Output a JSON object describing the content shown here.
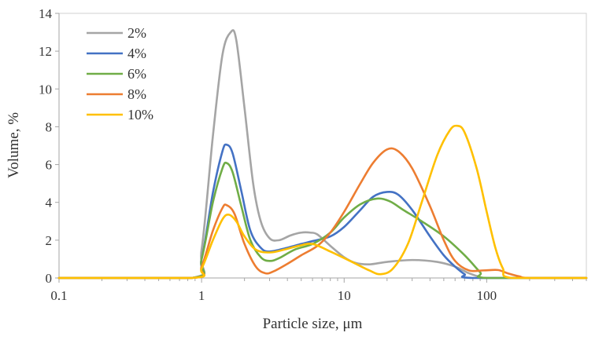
{
  "chart_data": {
    "type": "line",
    "title": "",
    "xlabel": "Particle size, μm",
    "ylabel": "Volume, %",
    "xscale": "log",
    "xlim": [
      0.1,
      500
    ],
    "ylim": [
      0,
      14
    ],
    "xticks": [
      0.1,
      1,
      10,
      100
    ],
    "xtick_labels": [
      "0.1",
      "1",
      "10",
      "100"
    ],
    "yticks": [
      0,
      2,
      4,
      6,
      8,
      10,
      12,
      14
    ],
    "ytick_labels": [
      "0",
      "2",
      "4",
      "6",
      "8",
      "10",
      "12",
      "14"
    ],
    "grid": false,
    "legend_position": "top-left",
    "series": [
      {
        "name": "2%",
        "color": "#A5A5A5",
        "points": [
          [
            0.1,
            0
          ],
          [
            0.85,
            0
          ],
          [
            1.0,
            1.5
          ],
          [
            1.2,
            7.5
          ],
          [
            1.4,
            11.8
          ],
          [
            1.6,
            13.0
          ],
          [
            1.75,
            12.6
          ],
          [
            2.0,
            9.0
          ],
          [
            2.3,
            5.0
          ],
          [
            2.6,
            3.0
          ],
          [
            3.0,
            2.1
          ],
          [
            3.5,
            2.0
          ],
          [
            4.2,
            2.25
          ],
          [
            5.0,
            2.4
          ],
          [
            5.8,
            2.4
          ],
          [
            6.5,
            2.3
          ],
          [
            8,
            1.7
          ],
          [
            10,
            1.1
          ],
          [
            12,
            0.8
          ],
          [
            15,
            0.72
          ],
          [
            20,
            0.85
          ],
          [
            30,
            0.95
          ],
          [
            45,
            0.85
          ],
          [
            60,
            0.6
          ],
          [
            75,
            0.25
          ],
          [
            90,
            0.05
          ],
          [
            100,
            0
          ],
          [
            500,
            0
          ]
        ]
      },
      {
        "name": "4%",
        "color": "#4472C4",
        "points": [
          [
            0.1,
            0
          ],
          [
            0.85,
            0
          ],
          [
            1.0,
            1.0
          ],
          [
            1.2,
            4.5
          ],
          [
            1.4,
            6.7
          ],
          [
            1.5,
            7.05
          ],
          [
            1.65,
            6.6
          ],
          [
            1.9,
            4.6
          ],
          [
            2.2,
            2.5
          ],
          [
            2.6,
            1.6
          ],
          [
            3.0,
            1.4
          ],
          [
            4.0,
            1.6
          ],
          [
            5.0,
            1.8
          ],
          [
            6.0,
            1.95
          ],
          [
            8,
            2.2
          ],
          [
            10,
            2.7
          ],
          [
            13,
            3.6
          ],
          [
            16,
            4.3
          ],
          [
            20,
            4.55
          ],
          [
            24,
            4.4
          ],
          [
            30,
            3.6
          ],
          [
            40,
            2.2
          ],
          [
            50,
            1.2
          ],
          [
            60,
            0.6
          ],
          [
            70,
            0.2
          ],
          [
            80,
            0
          ],
          [
            500,
            0
          ]
        ]
      },
      {
        "name": "6%",
        "color": "#70AD47",
        "points": [
          [
            0.1,
            0
          ],
          [
            0.85,
            0
          ],
          [
            1.0,
            1.0
          ],
          [
            1.2,
            4.0
          ],
          [
            1.4,
            5.8
          ],
          [
            1.5,
            6.08
          ],
          [
            1.65,
            5.6
          ],
          [
            1.9,
            3.8
          ],
          [
            2.2,
            2.0
          ],
          [
            2.6,
            1.1
          ],
          [
            3.0,
            0.9
          ],
          [
            3.5,
            1.05
          ],
          [
            4.5,
            1.5
          ],
          [
            6,
            1.8
          ],
          [
            8,
            2.4
          ],
          [
            10,
            3.2
          ],
          [
            13,
            3.9
          ],
          [
            17,
            4.2
          ],
          [
            21,
            4.05
          ],
          [
            26,
            3.6
          ],
          [
            35,
            3.0
          ],
          [
            50,
            2.2
          ],
          [
            70,
            1.2
          ],
          [
            90,
            0.3
          ],
          [
            100,
            0
          ],
          [
            500,
            0
          ]
        ]
      },
      {
        "name": "8%",
        "color": "#ED7D31",
        "points": [
          [
            0.1,
            0
          ],
          [
            0.85,
            0
          ],
          [
            1.0,
            0.6
          ],
          [
            1.2,
            2.5
          ],
          [
            1.4,
            3.7
          ],
          [
            1.5,
            3.85
          ],
          [
            1.7,
            3.4
          ],
          [
            2.0,
            1.8
          ],
          [
            2.4,
            0.6
          ],
          [
            2.8,
            0.25
          ],
          [
            3.2,
            0.35
          ],
          [
            4.0,
            0.75
          ],
          [
            5.0,
            1.2
          ],
          [
            6.5,
            1.7
          ],
          [
            8,
            2.4
          ],
          [
            10,
            3.5
          ],
          [
            13,
            5.0
          ],
          [
            16,
            6.1
          ],
          [
            20,
            6.8
          ],
          [
            24,
            6.7
          ],
          [
            30,
            5.8
          ],
          [
            40,
            3.8
          ],
          [
            50,
            2.0
          ],
          [
            60,
            0.9
          ],
          [
            75,
            0.4
          ],
          [
            95,
            0.4
          ],
          [
            120,
            0.42
          ],
          [
            140,
            0.25
          ],
          [
            170,
            0.08
          ],
          [
            200,
            0
          ],
          [
            500,
            0
          ]
        ]
      },
      {
        "name": "10%",
        "color": "#FFC000",
        "points": [
          [
            0.1,
            0
          ],
          [
            0.85,
            0
          ],
          [
            1.0,
            0.5
          ],
          [
            1.2,
            2.0
          ],
          [
            1.4,
            3.1
          ],
          [
            1.55,
            3.35
          ],
          [
            1.75,
            3.0
          ],
          [
            2.0,
            2.2
          ],
          [
            2.4,
            1.5
          ],
          [
            3.0,
            1.35
          ],
          [
            3.8,
            1.5
          ],
          [
            4.8,
            1.7
          ],
          [
            6,
            1.8
          ],
          [
            8,
            1.4
          ],
          [
            11,
            0.9
          ],
          [
            15,
            0.4
          ],
          [
            18,
            0.2
          ],
          [
            22,
            0.5
          ],
          [
            28,
            1.8
          ],
          [
            35,
            4.0
          ],
          [
            45,
            6.5
          ],
          [
            55,
            7.8
          ],
          [
            62,
            8.05
          ],
          [
            70,
            7.7
          ],
          [
            85,
            5.8
          ],
          [
            100,
            3.5
          ],
          [
            115,
            1.6
          ],
          [
            130,
            0.5
          ],
          [
            150,
            0
          ],
          [
            500,
            0
          ]
        ]
      }
    ]
  }
}
